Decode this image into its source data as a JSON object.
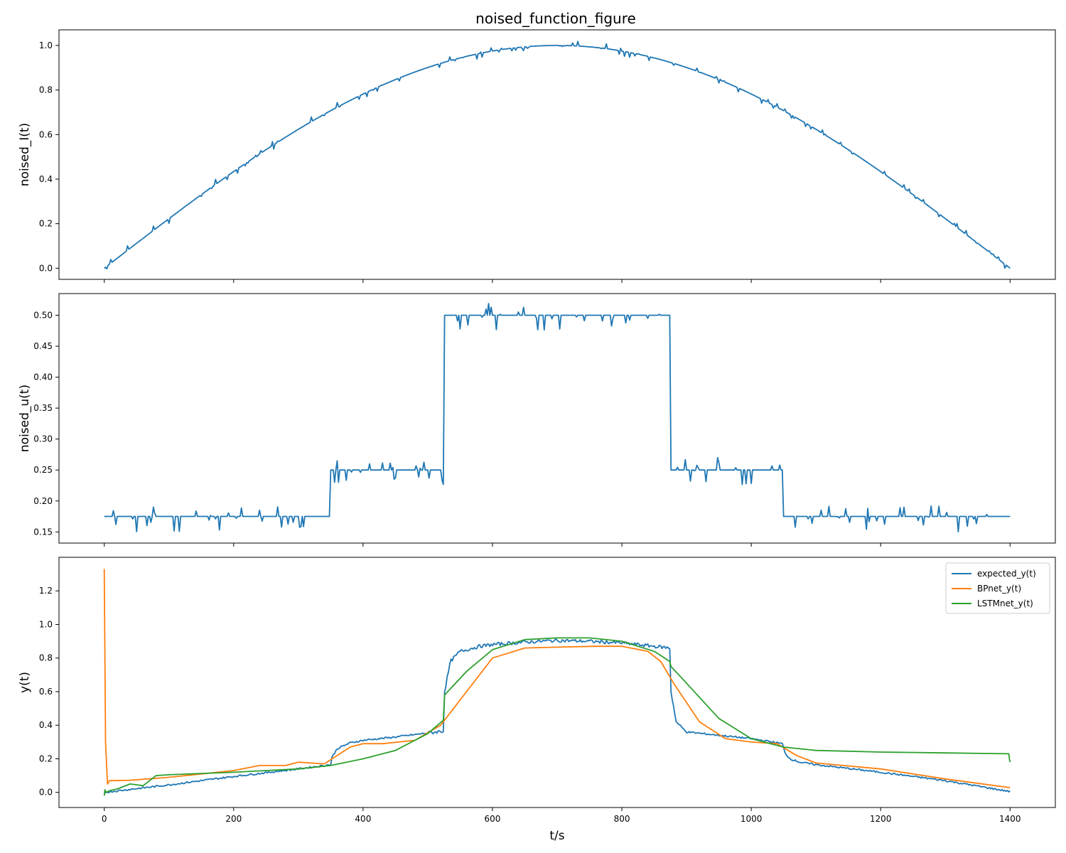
{
  "figure": {
    "title": "noised_function_figure"
  },
  "chart_data": [
    {
      "type": "line",
      "ylabel": "noised_I(t)",
      "xlabel": "",
      "xlim": [
        -70,
        1470
      ],
      "ylim": [
        -0.05,
        1.07
      ],
      "xticks": [
        0,
        200,
        400,
        600,
        800,
        1000,
        1200,
        1400
      ],
      "xtick_labels_visible": false,
      "yticks": [
        0.0,
        0.2,
        0.4,
        0.6,
        0.8,
        1.0
      ],
      "ytick_labels": [
        "0.0",
        "0.2",
        "0.4",
        "0.6",
        "0.8",
        "1.0"
      ],
      "grid": false,
      "series": [
        {
          "color": "#1f77b4",
          "function": "sin(pi*t/1400) with small noise",
          "x": [
            0,
            100,
            200,
            300,
            400,
            500,
            600,
            700,
            800,
            900,
            1000,
            1100,
            1200,
            1300,
            1400
          ],
          "y": [
            0.0,
            0.223,
            0.434,
            0.623,
            0.782,
            0.901,
            0.975,
            1.0,
            0.975,
            0.901,
            0.782,
            0.623,
            0.434,
            0.223,
            0.0
          ]
        }
      ]
    },
    {
      "type": "line",
      "ylabel": "noised_u(t)",
      "xlabel": "",
      "xlim": [
        -70,
        1470
      ],
      "ylim": [
        0.132,
        0.535
      ],
      "xticks": [
        0,
        200,
        400,
        600,
        800,
        1000,
        1200,
        1400
      ],
      "xtick_labels_visible": false,
      "yticks": [
        0.15,
        0.2,
        0.25,
        0.3,
        0.35,
        0.4,
        0.45,
        0.5
      ],
      "ytick_labels": [
        "0.15",
        "0.20",
        "0.25",
        "0.30",
        "0.35",
        "0.40",
        "0.45",
        "0.50"
      ],
      "grid": false,
      "series": [
        {
          "color": "#1f77b4",
          "kind": "step with noise",
          "steps": [
            {
              "x_start": 0,
              "x_end": 350,
              "y": 0.175
            },
            {
              "x_start": 350,
              "x_end": 525,
              "y": 0.25
            },
            {
              "x_start": 525,
              "x_end": 875,
              "y": 0.5
            },
            {
              "x_start": 875,
              "x_end": 1050,
              "y": 0.25
            },
            {
              "x_start": 1050,
              "x_end": 1400,
              "y": 0.175
            }
          ]
        }
      ]
    },
    {
      "type": "line",
      "ylabel": "y(t)",
      "xlabel": "t/s",
      "xlim": [
        -70,
        1470
      ],
      "ylim": [
        -0.09,
        1.4
      ],
      "xticks": [
        0,
        200,
        400,
        600,
        800,
        1000,
        1200,
        1400
      ],
      "xtick_labels": [
        "0",
        "200",
        "400",
        "600",
        "800",
        "1000",
        "1200",
        "1400"
      ],
      "yticks": [
        0.0,
        0.2,
        0.4,
        0.6,
        0.8,
        1.0,
        1.2
      ],
      "ytick_labels": [
        "0.0",
        "0.2",
        "0.4",
        "0.6",
        "0.8",
        "1.0",
        "1.2"
      ],
      "grid": false,
      "legend": "top-right",
      "series": [
        {
          "name": "expected_y(t)",
          "color": "#1f77b4",
          "x": [
            0,
            100,
            200,
            300,
            350,
            352,
            360,
            380,
            400,
            450,
            524,
            526,
            535,
            550,
            580,
            600,
            650,
            700,
            750,
            800,
            850,
            874,
            876,
            884,
            900,
            950,
            1000,
            1049,
            1051,
            1060,
            1075,
            1100,
            1200,
            1300,
            1400
          ],
          "y": [
            0.0,
            0.045,
            0.095,
            0.14,
            0.165,
            0.21,
            0.26,
            0.295,
            0.31,
            0.33,
            0.365,
            0.6,
            0.78,
            0.84,
            0.87,
            0.88,
            0.895,
            0.905,
            0.9,
            0.89,
            0.87,
            0.86,
            0.6,
            0.42,
            0.36,
            0.34,
            0.32,
            0.29,
            0.24,
            0.2,
            0.18,
            0.165,
            0.12,
            0.07,
            0.005
          ]
        },
        {
          "name": "BPnet_y(t)",
          "color": "#ff7f0e",
          "x": [
            0,
            2,
            5,
            8,
            12,
            40,
            100,
            150,
            200,
            240,
            280,
            300,
            340,
            360,
            380,
            400,
            430,
            480,
            520,
            560,
            600,
            650,
            700,
            760,
            800,
            840,
            860,
            880,
            920,
            960,
            1000,
            1040,
            1070,
            1100,
            1200,
            1300,
            1400
          ],
          "y": [
            1.33,
            0.3,
            0.05,
            0.07,
            0.07,
            0.072,
            0.09,
            0.11,
            0.13,
            0.16,
            0.16,
            0.18,
            0.17,
            0.22,
            0.27,
            0.29,
            0.29,
            0.31,
            0.4,
            0.6,
            0.8,
            0.86,
            0.865,
            0.87,
            0.87,
            0.84,
            0.78,
            0.65,
            0.42,
            0.32,
            0.3,
            0.29,
            0.22,
            0.175,
            0.14,
            0.08,
            0.028
          ]
        },
        {
          "name": "LSTMnet_y(t)",
          "color": "#2ca02c",
          "x": [
            0,
            1,
            3,
            8,
            20,
            40,
            60,
            70,
            80,
            100,
            200,
            300,
            350,
            400,
            450,
            500,
            524,
            526,
            560,
            600,
            650,
            700,
            750,
            800,
            850,
            874,
            876,
            900,
            950,
            1000,
            1050,
            1100,
            1200,
            1300,
            1398,
            1399,
            1400
          ],
          "y": [
            -0.02,
            0.015,
            0.0,
            0.01,
            0.02,
            0.05,
            0.04,
            0.07,
            0.1,
            0.105,
            0.12,
            0.14,
            0.16,
            0.2,
            0.25,
            0.35,
            0.43,
            0.58,
            0.72,
            0.85,
            0.91,
            0.92,
            0.92,
            0.9,
            0.84,
            0.78,
            0.75,
            0.65,
            0.44,
            0.32,
            0.27,
            0.25,
            0.24,
            0.235,
            0.23,
            0.2,
            0.18
          ]
        }
      ]
    }
  ]
}
